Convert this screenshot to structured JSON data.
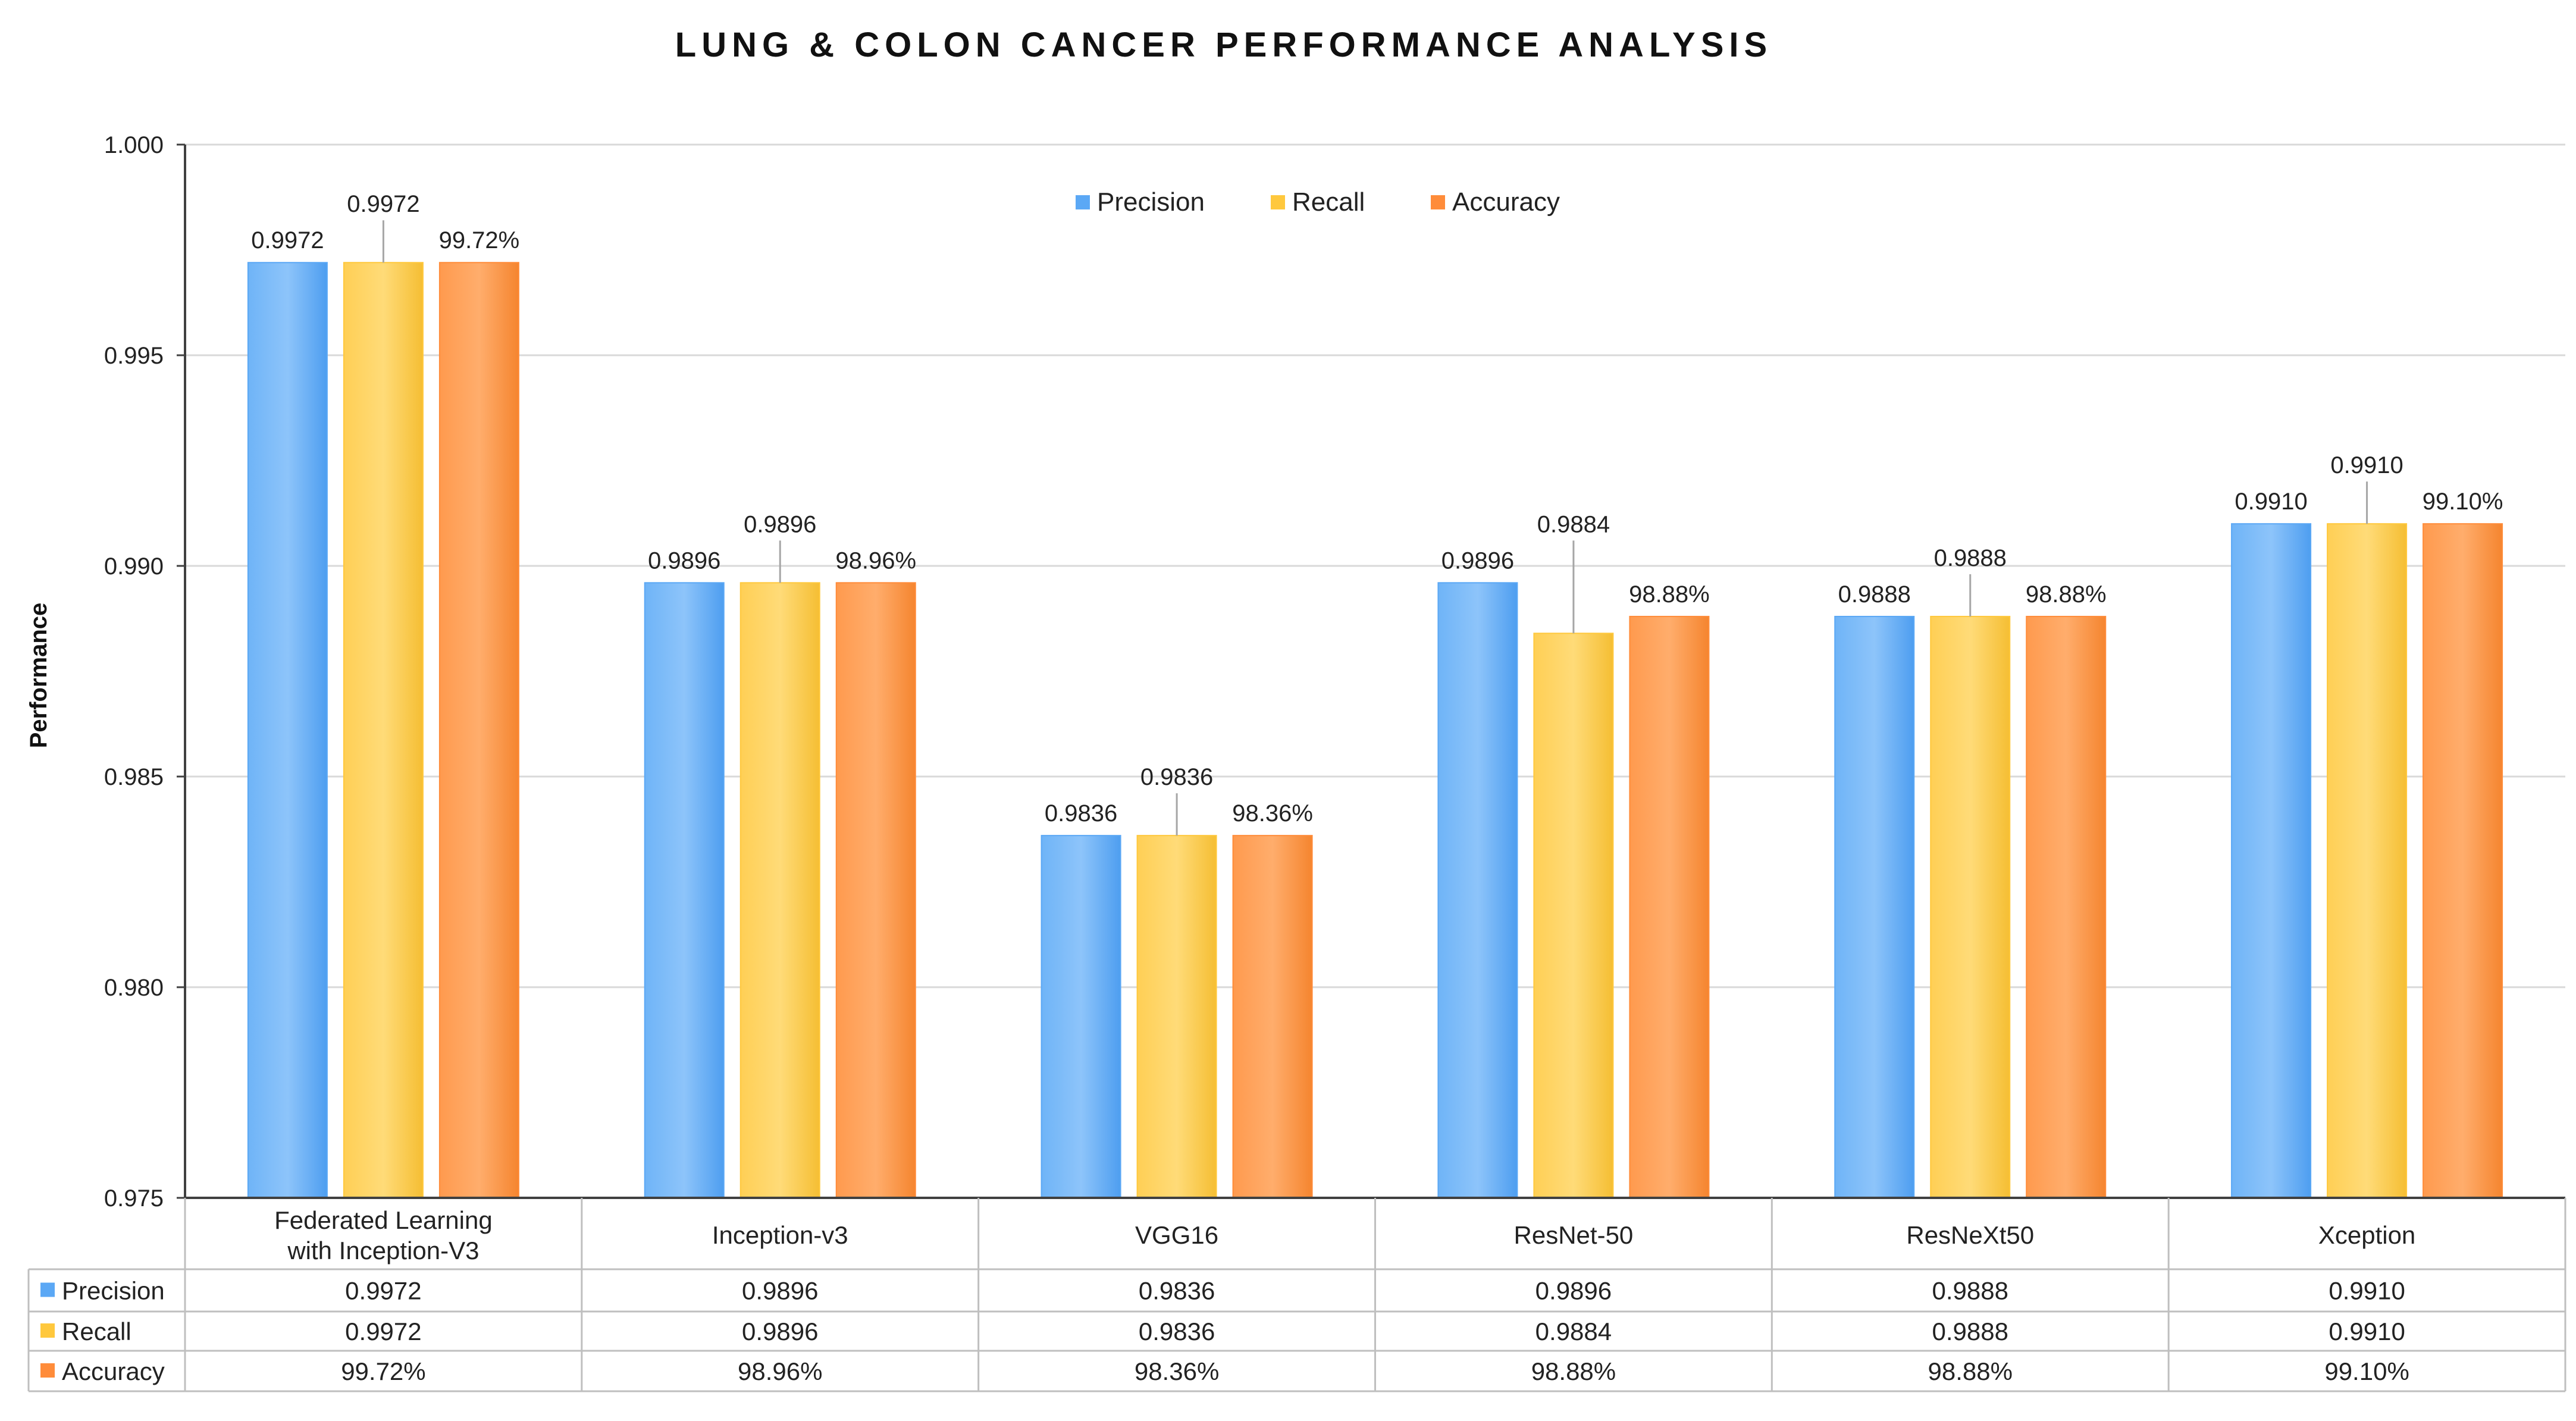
{
  "chart_data": {
    "type": "bar",
    "title": "LUNG & COLON CANCER PERFORMANCE ANALYSIS",
    "xlabel": "",
    "ylabel": "Performance",
    "ylim": [
      0.975,
      1.0
    ],
    "y_ticks": [
      0.975,
      0.98,
      0.985,
      0.99,
      0.995,
      1.0
    ],
    "y_tick_labels": [
      "0.975",
      "0.980",
      "0.985",
      "0.990",
      "0.995",
      "1.000"
    ],
    "grid": true,
    "legend_position": "top-center",
    "categories": [
      "Federated Learning with Inception-V3",
      "Inception-v3",
      "VGG16",
      "ResNet-50",
      "ResNeXt50",
      "Xception"
    ],
    "category_lines": [
      [
        "Federated Learning",
        "with Inception-V3"
      ],
      [
        "Inception-v3"
      ],
      [
        "VGG16"
      ],
      [
        "ResNet-50"
      ],
      [
        "ResNeXt50"
      ],
      [
        "Xception"
      ]
    ],
    "series": [
      {
        "name": "Precision",
        "color": "#5BA8F5",
        "values": [
          0.9972,
          0.9896,
          0.9836,
          0.9896,
          0.9888,
          0.991
        ],
        "labels": [
          "0.9972",
          "0.9896",
          "0.9836",
          "0.9896",
          "0.9888",
          "0.9910"
        ]
      },
      {
        "name": "Recall",
        "color": "#FFC83D",
        "values": [
          0.9972,
          0.9896,
          0.9836,
          0.9884,
          0.9888,
          0.991
        ],
        "labels": [
          "0.9972",
          "0.9896",
          "0.9836",
          "0.9884",
          "0.9888",
          "0.9910"
        ]
      },
      {
        "name": "Accuracy",
        "color": "#FF8C3A",
        "values": [
          0.9972,
          0.9896,
          0.9836,
          0.9888,
          0.9888,
          0.991
        ],
        "labels": [
          "99.72%",
          "98.96%",
          "98.36%",
          "98.88%",
          "98.88%",
          "99.10%"
        ]
      }
    ]
  }
}
